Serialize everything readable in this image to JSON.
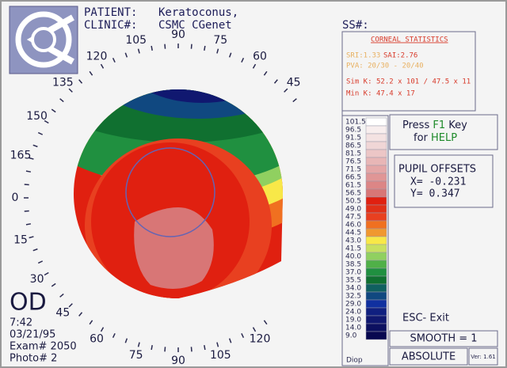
{
  "header": {
    "patient_label": "PATIENT:",
    "patient": "Keratoconus,",
    "clinic_label": "CLINIC#:",
    "clinic": "CSMC CGenet",
    "ss_label": "SS#:"
  },
  "ring_labels": [
    "45",
    "60",
    "75",
    "90",
    "105",
    "120",
    "135",
    "150",
    "165",
    "0",
    "15",
    "30",
    "45",
    "60",
    "75",
    "90",
    "105",
    "120"
  ],
  "exam": {
    "eye": "OD",
    "time": "7:42",
    "date": "03/21/95",
    "exam": "Exam# 2050",
    "photo": "Photo# 2"
  },
  "stats": {
    "title": "CORNEAL STATISTICS",
    "sri": "SRI:1.33",
    "sai": "SAI:2.76",
    "pva": "PVA: 20/30 - 20/40",
    "sim_k_label": "Sim K:",
    "sim_k": "52.2 x 101 / 47.5 x 11",
    "min_k_label": "Min K:",
    "min_k": "47.4 x 17"
  },
  "help": {
    "press": "Press",
    "key": "F1",
    "key_word": "Key",
    "for": "for",
    "help": "HELP"
  },
  "pupil": {
    "title": "PUPIL OFFSETS",
    "x": "X= -0.231",
    "y": "Y= 0.347"
  },
  "scale": {
    "levels": [
      {
        "label": "101.5",
        "color": "#ffffff"
      },
      {
        "label": "96.5",
        "color": "#f8eeee"
      },
      {
        "label": "91.5",
        "color": "#f4e2e2"
      },
      {
        "label": "86.5",
        "color": "#f0d6d6"
      },
      {
        "label": "81.5",
        "color": "#ecc6c6"
      },
      {
        "label": "76.5",
        "color": "#e8b6b6"
      },
      {
        "label": "71.5",
        "color": "#e4a6a6"
      },
      {
        "label": "66.5",
        "color": "#e09696"
      },
      {
        "label": "61.5",
        "color": "#dc8686"
      },
      {
        "label": "56.5",
        "color": "#d87676"
      },
      {
        "label": "50.5",
        "color": "#e02010"
      },
      {
        "label": "49.0",
        "color": "#e03018"
      },
      {
        "label": "47.5",
        "color": "#e84020"
      },
      {
        "label": "46.0",
        "color": "#f07020"
      },
      {
        "label": "44.5",
        "color": "#f09830"
      },
      {
        "label": "43.0",
        "color": "#f8e848"
      },
      {
        "label": "41.5",
        "color": "#c8e060"
      },
      {
        "label": "40.0",
        "color": "#90d060"
      },
      {
        "label": "38.5",
        "color": "#50b048"
      },
      {
        "label": "37.0",
        "color": "#209040"
      },
      {
        "label": "35.5",
        "color": "#107030"
      },
      {
        "label": "34.0",
        "color": "#106060"
      },
      {
        "label": "32.5",
        "color": "#104880"
      },
      {
        "label": "29.0",
        "color": "#1030a0"
      },
      {
        "label": "24.0",
        "color": "#102080"
      },
      {
        "label": "19.0",
        "color": "#101870"
      },
      {
        "label": "14.0",
        "color": "#0c1060"
      },
      {
        "label": "9.0",
        "color": "#080850"
      }
    ],
    "unit": "Diop"
  },
  "footer": {
    "esc": "ESC- Exit",
    "smooth": "SMOOTH = 1",
    "mode": "ABSOLUTE",
    "version": "Ver: 1.61"
  }
}
